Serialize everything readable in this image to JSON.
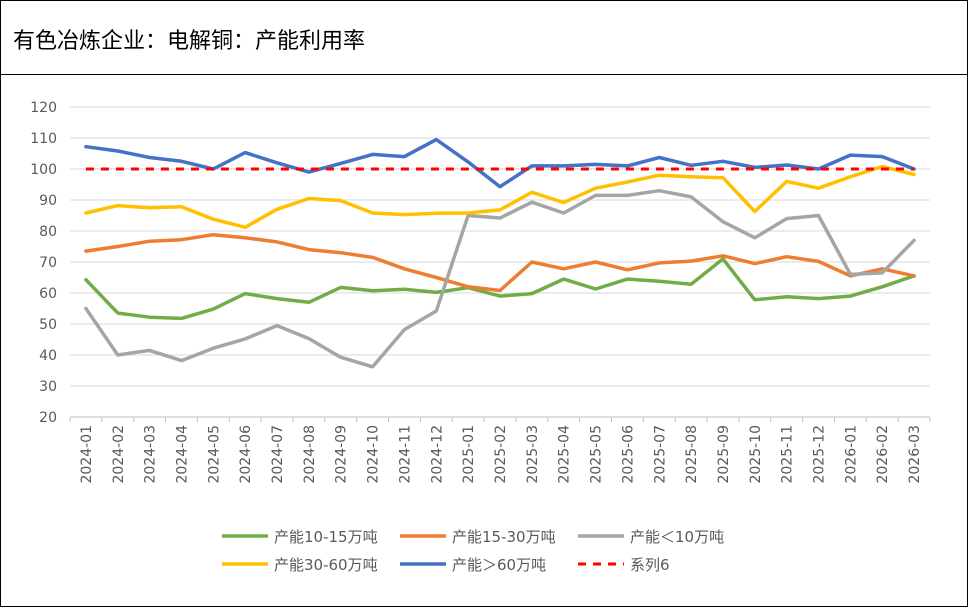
{
  "title": "有色冶炼企业：电解铜：产能利用率",
  "chart_data": {
    "type": "line",
    "title": "有色冶炼企业：电解铜：产能利用率",
    "categories": [
      "2024-01",
      "2024-02",
      "2024-03",
      "2024-04",
      "2024-05",
      "2024-06",
      "2024-07",
      "2024-08",
      "2024-09",
      "2024-10",
      "2024-11",
      "2024-12",
      "2025-01",
      "2025-02",
      "2025-03",
      "2025-04",
      "2025-05",
      "2025-06",
      "2025-07",
      "2025-08",
      "2025-09",
      "2025-10",
      "2025-11",
      "2025-12",
      "2026-01",
      "2026-02",
      "2026-03"
    ],
    "y_ticks": [
      "20",
      "30",
      "40",
      "50",
      "60",
      "70",
      "80",
      "90",
      "100",
      "110",
      "120"
    ],
    "ylim": [
      20,
      120
    ],
    "grid": true,
    "legend_position": "bottom",
    "series": [
      {
        "name": "产能10-15万吨",
        "color": "#70AD47",
        "dash": false,
        "values": [
          64.3,
          53.5,
          52.2,
          51.8,
          54.8,
          59.8,
          58.2,
          57,
          61.8,
          60.7,
          61.2,
          60.2,
          61.7,
          59,
          59.8,
          64.5,
          61.3,
          64.5,
          63.8,
          62.8,
          71,
          57.8,
          58.8,
          58.2,
          59,
          62,
          65.5
        ]
      },
      {
        "name": "产能15-30万吨",
        "color": "#ED7D31",
        "dash": false,
        "values": [
          73.5,
          75,
          76.7,
          77.2,
          78.8,
          77.8,
          76.5,
          74,
          73,
          71.5,
          67.8,
          65,
          62,
          60.8,
          70,
          67.8,
          70,
          67.5,
          69.7,
          70.3,
          72,
          69.5,
          71.7,
          70.2,
          65.5,
          67.8,
          65.5
        ]
      },
      {
        "name": "产能＜10万吨",
        "color": "#A5A5A5",
        "dash": false,
        "values": [
          55,
          40,
          41.5,
          38.2,
          42.2,
          45.2,
          49.5,
          45.3,
          39.3,
          36.2,
          48.2,
          54.2,
          85,
          84.2,
          89.3,
          85.8,
          91.5,
          91.5,
          93,
          91,
          83,
          77.8,
          84,
          85,
          66,
          66.5,
          77
        ]
      },
      {
        "name": "产能30-60万吨",
        "color": "#FFC000",
        "dash": false,
        "values": [
          85.8,
          88.2,
          87.5,
          87.8,
          83.8,
          81.2,
          87,
          90.5,
          89.8,
          85.8,
          85.3,
          85.7,
          85.8,
          86.8,
          92.5,
          89.2,
          93.8,
          95.8,
          98,
          97.5,
          97.2,
          86.3,
          96,
          93.8,
          97.5,
          100.8,
          98.2
        ]
      },
      {
        "name": "产能＞60万吨",
        "color": "#4472C4",
        "dash": false,
        "values": [
          107.2,
          105.8,
          103.7,
          102.5,
          100,
          105.3,
          102,
          99,
          101.8,
          104.7,
          104,
          109.5,
          102.3,
          94.3,
          101,
          101,
          101.5,
          101,
          103.7,
          101.2,
          102.5,
          100.5,
          101.3,
          100,
          104.5,
          104,
          100
        ]
      },
      {
        "name": "系列6",
        "color": "#FF0000",
        "dash": true,
        "values": [
          100,
          100,
          100,
          100,
          100,
          100,
          100,
          100,
          100,
          100,
          100,
          100,
          100,
          100,
          100,
          100,
          100,
          100,
          100,
          100,
          100,
          100,
          100,
          100,
          100,
          100,
          100
        ]
      }
    ]
  }
}
